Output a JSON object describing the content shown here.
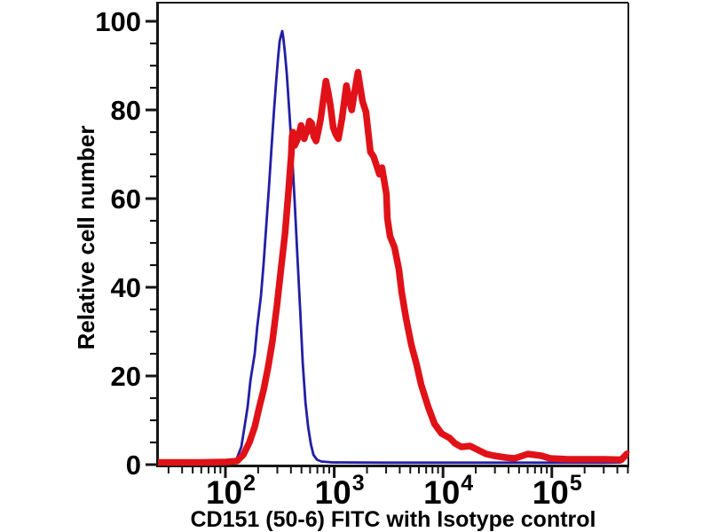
{
  "chart_data": {
    "type": "line",
    "subtype": "flow-cytometry-histogram",
    "title": "",
    "xlabel": "CD151 (50-6) FITC with Isotype control",
    "ylabel": "Relative cell number",
    "x_scale": "log",
    "xlim": [
      24,
      505000
    ],
    "ylim": [
      0,
      100
    ],
    "grid": false,
    "legend": "none",
    "x_major_ticks": [
      100,
      1000,
      10000,
      100000
    ],
    "x_tick_labels": [
      "10^2",
      "10^3",
      "10^4",
      "10^5"
    ],
    "y_major_ticks": [
      0,
      20,
      40,
      60,
      80,
      100
    ],
    "y_tick_labels": [
      "0",
      "20",
      "40",
      "60",
      "80",
      "100"
    ],
    "y_minor_step": 5,
    "frame_color": "#151515",
    "background_color": "#ffffff",
    "series": [
      {
        "id": "isotype-control",
        "name": "Isotype control",
        "color": "#221fa4",
        "stroke_width": 2.8,
        "points": [
          [
            24,
            0.4
          ],
          [
            80,
            0.4
          ],
          [
            105,
            0.5
          ],
          [
            118,
            0.8
          ],
          [
            128,
            1.5
          ],
          [
            140,
            4
          ],
          [
            151,
            9
          ],
          [
            160,
            13
          ],
          [
            170,
            19
          ],
          [
            186,
            25
          ],
          [
            196,
            31
          ],
          [
            212,
            38
          ],
          [
            224,
            45
          ],
          [
            236,
            53
          ],
          [
            252,
            63
          ],
          [
            266,
            72
          ],
          [
            280,
            80
          ],
          [
            292,
            86
          ],
          [
            304,
            91.5
          ],
          [
            315,
            95.5
          ],
          [
            326,
            97
          ],
          [
            333,
            97.8
          ],
          [
            340,
            96.5
          ],
          [
            352,
            93
          ],
          [
            367,
            88
          ],
          [
            388,
            79
          ],
          [
            410,
            70
          ],
          [
            434,
            59
          ],
          [
            459,
            47
          ],
          [
            486,
            35
          ],
          [
            514,
            23
          ],
          [
            544,
            14
          ],
          [
            576,
            8.5
          ],
          [
            610,
            4.6
          ],
          [
            645,
            2.2
          ],
          [
            695,
            1.1
          ],
          [
            764,
            0.7
          ],
          [
            960,
            0.5
          ],
          [
            3000,
            0.45
          ],
          [
            30000,
            0.45
          ],
          [
            300000,
            0.45
          ],
          [
            430000,
            0.5
          ],
          [
            475000,
            1.9
          ],
          [
            505000,
            2.1
          ]
        ]
      },
      {
        "id": "cd151-fitc",
        "name": "CD151 (50-6) FITC",
        "color": "#e01218",
        "stroke_width": 7.5,
        "points": [
          [
            24,
            0.5
          ],
          [
            60,
            0.5
          ],
          [
            100,
            0.6
          ],
          [
            128,
            0.8
          ],
          [
            146,
            2.2
          ],
          [
            166,
            5
          ],
          [
            186,
            8.5
          ],
          [
            205,
            13
          ],
          [
            225,
            17
          ],
          [
            247,
            22
          ],
          [
            271,
            28
          ],
          [
            298,
            36
          ],
          [
            327,
            45
          ],
          [
            353,
            52
          ],
          [
            381,
            62
          ],
          [
            403,
            70
          ],
          [
            410,
            74
          ],
          [
            418,
            75
          ],
          [
            434,
            72
          ],
          [
            452,
            73
          ],
          [
            470,
            74
          ],
          [
            496,
            76.5
          ],
          [
            512,
            75
          ],
          [
            530,
            73.5
          ],
          [
            544,
            74.5
          ],
          [
            562,
            75
          ],
          [
            592,
            77.5
          ],
          [
            621,
            77
          ],
          [
            650,
            74
          ],
          [
            682,
            73
          ],
          [
            718,
            75.5
          ],
          [
            750,
            78
          ],
          [
            795,
            82.5
          ],
          [
            839,
            86.5
          ],
          [
            880,
            84
          ],
          [
            922,
            81
          ],
          [
            980,
            76
          ],
          [
            1033,
            74.5
          ],
          [
            1092,
            73.5
          ],
          [
            1178,
            78
          ],
          [
            1294,
            85.5
          ],
          [
            1370,
            82.5
          ],
          [
            1449,
            80
          ],
          [
            1550,
            84.5
          ],
          [
            1653,
            88.5
          ],
          [
            1736,
            85
          ],
          [
            1817,
            82
          ],
          [
            1959,
            79.5
          ],
          [
            2152,
            70.5
          ],
          [
            2300,
            69.5
          ],
          [
            2410,
            68
          ],
          [
            2600,
            65.5
          ],
          [
            2750,
            67
          ],
          [
            3020,
            61
          ],
          [
            3080,
            55.5
          ],
          [
            3260,
            51.5
          ],
          [
            3580,
            49
          ],
          [
            3930,
            44
          ],
          [
            4160,
            39
          ],
          [
            4570,
            33
          ],
          [
            5120,
            27
          ],
          [
            5730,
            22.5
          ],
          [
            6300,
            18
          ],
          [
            7310,
            13
          ],
          [
            8360,
            9.2
          ],
          [
            9700,
            7
          ],
          [
            11500,
            6
          ],
          [
            12900,
            4.8
          ],
          [
            14700,
            4
          ],
          [
            17700,
            4.2
          ],
          [
            21400,
            3.2
          ],
          [
            24900,
            2.4
          ],
          [
            29500,
            2
          ],
          [
            37700,
            1.6
          ],
          [
            45500,
            1.4
          ],
          [
            60300,
            2.4
          ],
          [
            80000,
            2
          ],
          [
            96600,
            1.4
          ],
          [
            140000,
            1.2
          ],
          [
            300000,
            1.2
          ],
          [
            435000,
            1.1
          ],
          [
            488000,
            2.4
          ],
          [
            505000,
            2.2
          ]
        ]
      }
    ]
  }
}
